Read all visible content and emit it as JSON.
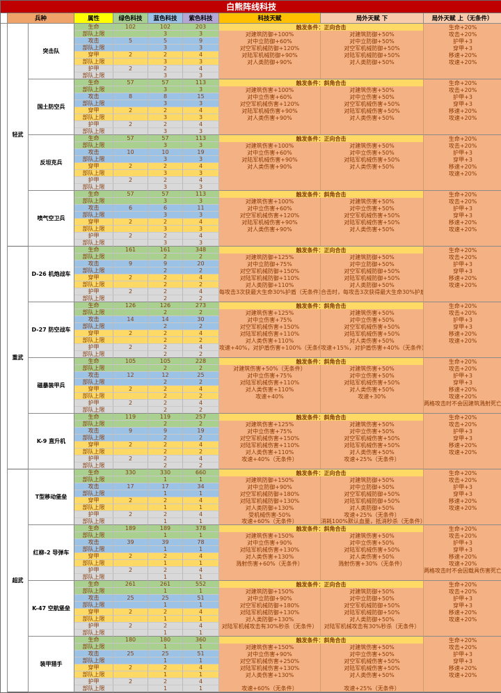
{
  "title": "白熊阵线科技",
  "columns": {
    "unit": "兵种",
    "attr": "属性",
    "green": "绿色科技",
    "blue": "蓝色科技",
    "purple": "紫色科技",
    "tech": "科技天赋",
    "mid": "局外天赋 下",
    "right": "局外天赋 上（无条件）"
  },
  "row_labels": [
    "生命",
    "部队上限",
    "攻击",
    "部队上限",
    "穿甲",
    "部队上限",
    "护甲",
    "部队上限"
  ],
  "colors": {
    "title_bg": "#C00000",
    "unit_header": "#EFA368",
    "attr_header": "#FFFF00",
    "green": "#A9D08E",
    "blue": "#9CC2E5",
    "yellow": "#FFD966",
    "gray": "#D9D9D9",
    "purple_header": "#B4A7D6",
    "tech_header": "#FFC000",
    "outer_header": "#F8CBAD",
    "talent_area": "#F4B183",
    "trigger_bg": "#FFD966",
    "data_text": "#843C0C"
  },
  "groups": [
    {
      "name": "轻武",
      "units": [
        {
          "name": "突击队",
          "values": [
            [
              "102",
              "102",
              "203"
            ],
            [
              "",
              "3",
              "3"
            ],
            [
              "5",
              "5",
              "9"
            ],
            [
              "",
              "3",
              "3"
            ],
            [
              "2",
              "2",
              "4"
            ],
            [
              "",
              "3",
              "3"
            ],
            [
              "2",
              "2",
              "4"
            ],
            [
              "",
              "3",
              "3"
            ]
          ],
          "trigger": "触发条件：正向合击",
          "tech": [
            "对建筑防御+100%",
            "对中立防御+60%",
            "对空军机械防御+120%",
            "对陆军机械防御+90%",
            "对人类防御+90%"
          ],
          "mid": [
            "对建筑防御+50%",
            "对中立防御+50%",
            "对空军机械防御+50%",
            "对陆军机械防御+50%",
            "对人类防御+50%"
          ],
          "right": [
            "生命+20%",
            "攻击+20%",
            "护甲+3",
            "穿甲+3",
            "移速+20%",
            "攻速+20%"
          ]
        },
        {
          "name": "国土防空兵",
          "values": [
            [
              "57",
              "57",
              "113"
            ],
            [
              "",
              "3",
              "3"
            ],
            [
              "8",
              "8",
              "15"
            ],
            [
              "",
              "3",
              "3"
            ],
            [
              "2",
              "2",
              "4"
            ],
            [
              "",
              "3",
              "3"
            ],
            [
              "2",
              "2",
              "4"
            ],
            [
              "",
              "3",
              "3"
            ]
          ],
          "trigger": "触发条件：斜角合击",
          "tech": [
            "对建筑伤害+100%",
            "对中立伤害+60%",
            "对空军机械伤害+120%",
            "对陆军机械伤害+90%",
            "对人类伤害+90%"
          ],
          "mid": [
            "对建筑伤害+50%",
            "对中立伤害+50%",
            "对空军机械伤害+50%",
            "对陆军机械伤害+50%",
            "对人类伤害+50%"
          ],
          "right": [
            "生命+20%",
            "攻击+20%",
            "护甲+3",
            "穿甲+3",
            "移速+20%",
            "攻速+20%"
          ]
        },
        {
          "name": "反坦克兵",
          "values": [
            [
              "57",
              "57",
              "113"
            ],
            [
              "",
              "3",
              "3"
            ],
            [
              "10",
              "10",
              "19"
            ],
            [
              "",
              "3",
              "3"
            ],
            [
              "2",
              "2",
              "4"
            ],
            [
              "",
              "3",
              "3"
            ],
            [
              "2",
              "2",
              "4"
            ],
            [
              "",
              "3",
              "3"
            ]
          ],
          "trigger": "触发条件：正向合击",
          "tech": [
            "对建筑伤害+100%",
            "对中立伤害+60%",
            "对陆军机械伤害+90%",
            "对人类伤害+90%"
          ],
          "mid": [
            "对建筑伤害+50%",
            "对中立伤害+50%",
            "对陆军机械伤害+50%",
            "对人类伤害+50%"
          ],
          "right": [
            "生命+20%",
            "攻击+20%",
            "护甲+3",
            "穿甲+3",
            "移速+20%",
            "攻速+20%"
          ]
        },
        {
          "name": "喷气空卫兵",
          "values": [
            [
              "57",
              "57",
              "113"
            ],
            [
              "",
              "3",
              "3"
            ],
            [
              "6",
              "6",
              "11"
            ],
            [
              "",
              "3",
              "3"
            ],
            [
              "2",
              "2",
              "4"
            ],
            [
              "",
              "3",
              "3"
            ],
            [
              "2",
              "2",
              "4"
            ],
            [
              "",
              "3",
              "3"
            ]
          ],
          "trigger": "触发条件：斜角合击",
          "tech": [
            "对建筑伤害+100%",
            "对中立伤害+60%",
            "对空军机械伤害+120%",
            "对陆军机械伤害+90%",
            "对人类伤害+90%"
          ],
          "mid": [
            "对建筑伤害+50%",
            "对中立伤害+50%",
            "对空军机械伤害+50%",
            "对陆军机械伤害+50%",
            "对人类伤害+50%"
          ],
          "right": [
            "生命+20%",
            "攻击+20%",
            "护甲+3",
            "穿甲+3",
            "移速+20%",
            "攻速+20%"
          ]
        }
      ]
    },
    {
      "name": "重武",
      "units": [
        {
          "name": "D-26 机炮战车",
          "values": [
            [
              "161",
              "161",
              "348"
            ],
            [
              "",
              "2",
              "2"
            ],
            [
              "9",
              "9",
              "20"
            ],
            [
              "",
              "2",
              "2"
            ],
            [
              "2",
              "2",
              "4"
            ],
            [
              "",
              "2",
              "2"
            ],
            [
              "2",
              "2",
              "4"
            ],
            [
              "",
              "2",
              "2"
            ]
          ],
          "trigger": "触发条件：正向合击",
          "tech": [
            "对建筑防御+125%",
            "对中立防御+75%",
            "对空军机械防御+150%",
            "对陆军机械防御+110%",
            "对人类防御+110%",
            "每攻击3次获最大生命30%护盾（无条件）"
          ],
          "mid": [
            "对建筑防御+50%",
            "对中立防御+50%",
            "对空军机械防御+50%",
            "对陆军机械防御+50%",
            "对人类防御+50%",
            "合击时，每攻击3次获得最大生命30%护盾"
          ],
          "right": [
            "生命+20%",
            "攻击+20%",
            "护甲+3",
            "穿甲+3",
            "移速+20%",
            "攻速+20%"
          ]
        },
        {
          "name": "D-27 防空战车",
          "values": [
            [
              "126",
              "126",
              "273"
            ],
            [
              "",
              "2",
              "2"
            ],
            [
              "14",
              "14",
              "30"
            ],
            [
              "",
              "2",
              "2"
            ],
            [
              "2",
              "2",
              "4"
            ],
            [
              "",
              "2",
              "2"
            ],
            [
              "2",
              "2",
              "4"
            ],
            [
              "",
              "2",
              "2"
            ]
          ],
          "trigger": "触发条件：斜角合击",
          "tech": [
            "对建筑伤害+125%",
            "对中立伤害+75%",
            "对空军机械伤害+150%",
            "对陆军机械伤害+110%",
            "对人类伤害+110%",
            "攻速+40%，对护盾伤害+100%（无条件）"
          ],
          "mid": [
            "对建筑伤害+50%",
            "对中立伤害+50%",
            "对空军机械伤害+50%",
            "对陆军机械伤害+50%",
            "对人类伤害+50%",
            "攻速+15%，对护盾伤害+40%（无条件）"
          ],
          "right": [
            "生命+20%",
            "攻击+20%",
            "护甲+3",
            "穿甲+3",
            "移速+20%",
            "攻速+20%"
          ]
        },
        {
          "name": "磁暴装甲兵",
          "values": [
            [
              "105",
              "105",
              "228"
            ],
            [
              "",
              "2",
              "2"
            ],
            [
              "12",
              "12",
              "25"
            ],
            [
              "",
              "2",
              "2"
            ],
            [
              "2",
              "2",
              "4"
            ],
            [
              "",
              "2",
              "2"
            ],
            [
              "2",
              "2",
              "4"
            ],
            [
              "",
              "2",
              "2"
            ]
          ],
          "trigger": "触发条件：斜角合击",
          "tech": [
            "对建筑伤害+50%（无条件）",
            "对中立伤害+75%",
            "对陆军机械伤害+110%",
            "对人类伤害+110%",
            "攻速+40%"
          ],
          "mid": [
            "对建筑伤害+50%",
            "对中立伤害+50%",
            "对陆军机械伤害+50%",
            "对人类伤害+50%",
            "攻速+30%"
          ],
          "right": [
            "生命+20%",
            "攻击+20%",
            "护甲+3",
            "穿甲+3",
            "移速+20%",
            "攻速+20%",
            "两格攻击时不会因建筑溅射死亡"
          ]
        },
        {
          "name": "K-9 直升机",
          "values": [
            [
              "119",
              "119",
              "257"
            ],
            [
              "",
              "2",
              "2"
            ],
            [
              "9",
              "9",
              "19"
            ],
            [
              "",
              "2",
              "2"
            ],
            [
              "2",
              "2",
              "4"
            ],
            [
              "",
              "2",
              "2"
            ],
            [
              "2",
              "2",
              "4"
            ],
            [
              "",
              "2",
              "2"
            ]
          ],
          "trigger": "触发条件：斜角合击",
          "tech": [
            "对建筑伤害+125%",
            "对中立伤害+75%",
            "对空军机械伤害+150%",
            "对陆军机械伤害+110%",
            "对人类伤害+110%",
            "攻速+40%（无条件）"
          ],
          "mid": [
            "对建筑伤害+50%",
            "对中立伤害+50%",
            "对空军机械伤害+50%",
            "对陆军机械伤害+50%",
            "对人类伤害+50%",
            "攻速+25%（无条件）"
          ],
          "right": [
            "生命+20%",
            "攻击+20%",
            "护甲+3",
            "穿甲+3",
            "移速+20%",
            "攻速+20%"
          ]
        }
      ]
    },
    {
      "name": "超武",
      "units": [
        {
          "name": "T型移动堡垒",
          "values": [
            [
              "330",
              "330",
              "660"
            ],
            [
              "",
              "1",
              "1"
            ],
            [
              "17",
              "17",
              "34"
            ],
            [
              "",
              "1",
              "1"
            ],
            [
              "2",
              "2",
              "4"
            ],
            [
              "",
              "1",
              "1"
            ],
            [
              "2",
              "2",
              "4"
            ],
            [
              "",
              "1",
              "1"
            ]
          ],
          "trigger": "触发条件：正向合击",
          "tech": [
            "对建筑防御+150%",
            "对中立防御+90%",
            "对空军机械防御+180%",
            "对陆军机械防御+130%",
            "对人类防御+130%",
            "受机械伤害-50%",
            "攻速+60%（无条件）"
          ],
          "mid": [
            "对建筑防御+50%",
            "对中立防御+50%",
            "对空军机械防御+50%",
            "对陆军机械防御+50%",
            "对人类防御+50%",
            "攻速+25%（无条件）",
            "消耗100%默认血量，抵消秒杀（无条件）"
          ],
          "right": [
            "生命+20%",
            "攻击+20%",
            "护甲+3",
            "穿甲+3",
            "移速+20%",
            "攻速+20%"
          ]
        },
        {
          "name": "红柳-2 导弹车",
          "values": [
            [
              "189",
              "189",
              "378"
            ],
            [
              "",
              "1",
              "1"
            ],
            [
              "39",
              "39",
              "78"
            ],
            [
              "",
              "1",
              "1"
            ],
            [
              "2",
              "2",
              "4"
            ],
            [
              "",
              "1",
              "1"
            ],
            [
              "2",
              "2",
              "4"
            ],
            [
              "",
              "1",
              "1"
            ]
          ],
          "trigger": "触发条件：斜角合击",
          "tech": [
            "对建筑伤害+150%",
            "对中立伤害+90%",
            "对陆军机械伤害+130%",
            "对人类伤害+130%",
            "溅射伤害+60%（无条件）"
          ],
          "mid": [
            "对建筑伤害+50%",
            "对中立伤害+50%",
            "对陆军机械伤害+50%",
            "对人类伤害+50%",
            "溅射伤害+30%（无条件）"
          ],
          "right": [
            "生命+20%",
            "攻击+20%",
            "护甲+3",
            "穿甲+3",
            "移速+20%",
            "攻速+20%",
            "两格攻击时不会因载具伤害死亡"
          ]
        },
        {
          "name": "K-47 空航堡垒",
          "values": [
            [
              "261",
              "261",
              "552"
            ],
            [
              "",
              "1",
              "1"
            ],
            [
              "25",
              "25",
              "51"
            ],
            [
              "",
              "1",
              "1"
            ],
            [
              "2",
              "2",
              "4"
            ],
            [
              "",
              "1",
              "1"
            ],
            [
              "2",
              "2",
              "4"
            ],
            [
              "",
              "1",
              "1"
            ]
          ],
          "trigger": "触发条件：正向合击",
          "tech": [
            "对建筑防御+150%",
            "对中立防御+90%",
            "对空军机械防御+180%",
            "对陆军机械防御+130%",
            "对人类防御+130%",
            "对陆军机械攻击有30%秒杀（无条件）"
          ],
          "mid": [
            "对建筑防御+50%",
            "对中立防御+50%",
            "对空军机械防御+50%",
            "对陆军机械防御+50%",
            "对人类防御+50%",
            "对陆军机械攻击有30%秒杀（无条件）"
          ],
          "right": [
            "生命+20%",
            "攻击+20%",
            "护甲+3",
            "穿甲+3",
            "移速+20%",
            "攻速+20%"
          ]
        },
        {
          "name": "装甲猎手",
          "values": [
            [
              "180",
              "180",
              "360"
            ],
            [
              "",
              "1",
              "1"
            ],
            [
              "25",
              "25",
              "51"
            ],
            [
              "",
              "1",
              "1"
            ],
            [
              "2",
              "2",
              "4"
            ],
            [
              "",
              "1",
              "1"
            ],
            [
              "2",
              "2",
              "4"
            ],
            [
              "",
              "1",
              "1"
            ]
          ],
          "trigger": "触发条件：斜角合击",
          "tech": [
            "对建筑伤害+150%",
            "对中立伤害+90%",
            "对空军机械伤害+250%",
            "对陆军机械伤害+130%",
            "对人类伤害+130%",
            "",
            "攻速+60%（无条件）"
          ],
          "mid": [
            "对建筑伤害+50%",
            "对中立伤害+50%",
            "对空军机械伤害+50%",
            "对陆军机械伤害+50%",
            "对人类伤害+50%",
            "",
            "攻速+25%（无条件）"
          ],
          "right": [
            "生命+20%",
            "攻击+20%",
            "护甲+3",
            "穿甲+3",
            "移速+20%",
            "攻速+20%"
          ]
        }
      ]
    }
  ]
}
